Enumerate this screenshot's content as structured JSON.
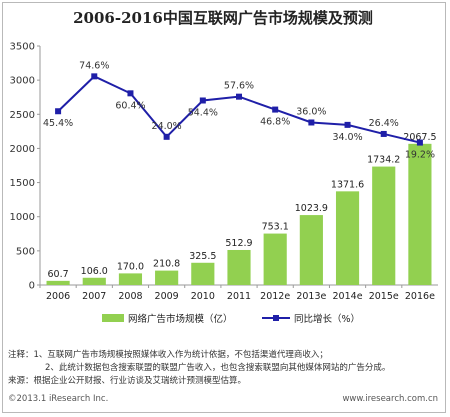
{
  "chart_data": {
    "title": "2006-2016中国互联网广告市场规模及预测",
    "type": "bar+line",
    "categories": [
      "2006",
      "2007",
      "2008",
      "2009",
      "2010",
      "2011",
      "2012e",
      "2013e",
      "2014e",
      "2015e",
      "2016e"
    ],
    "series": [
      {
        "name": "网络广告市场规模（亿）",
        "type": "bar",
        "color": "#92d050",
        "values": [
          60.7,
          106.0,
          170.0,
          210.8,
          325.5,
          512.9,
          753.1,
          1023.9,
          1371.6,
          1734.2,
          2067.5
        ]
      },
      {
        "name": "同比增长（%）",
        "type": "line",
        "color": "#1f1fa8",
        "values": [
          45.4,
          74.6,
          60.4,
          24.0,
          54.4,
          57.6,
          46.8,
          36.0,
          34.0,
          26.4,
          19.2
        ]
      }
    ],
    "bar_labels": [
      "60.7",
      "106.0",
      "170.0",
      "210.8",
      "325.5",
      "512.9",
      "753.1",
      "1023.9",
      "1371.6",
      "1734.2",
      "2067.5"
    ],
    "line_labels": [
      "45.4%",
      "74.6%",
      "60.4%",
      "24.0%",
      "54.4%",
      "57.6%",
      "46.8%",
      "36.0%",
      "34.0%",
      "26.4%",
      "19.2%"
    ],
    "line_secondary_range": [
      -100,
      100
    ],
    "ylim": [
      0,
      3500
    ],
    "yticks": [
      0,
      500,
      1000,
      1500,
      2000,
      2500,
      3000,
      3500
    ],
    "legend_position": "bottom",
    "grid": false
  },
  "notes": {
    "line1": "注释：1、互联网广告市场规模按照媒体收入作为统计依据，不包括渠道代理商收入；",
    "line2": "2、此统计数据包含搜索联盟的联盟广告收入，也包含搜索联盟向其他媒体网站的广告分成。",
    "line3": "来源：根据企业公开财报、行业访谈及艾瑞统计预测模型估算。"
  },
  "footer": {
    "left": "©2013.1 iResearch Inc.",
    "right": "www.iresearch.com.cn"
  }
}
